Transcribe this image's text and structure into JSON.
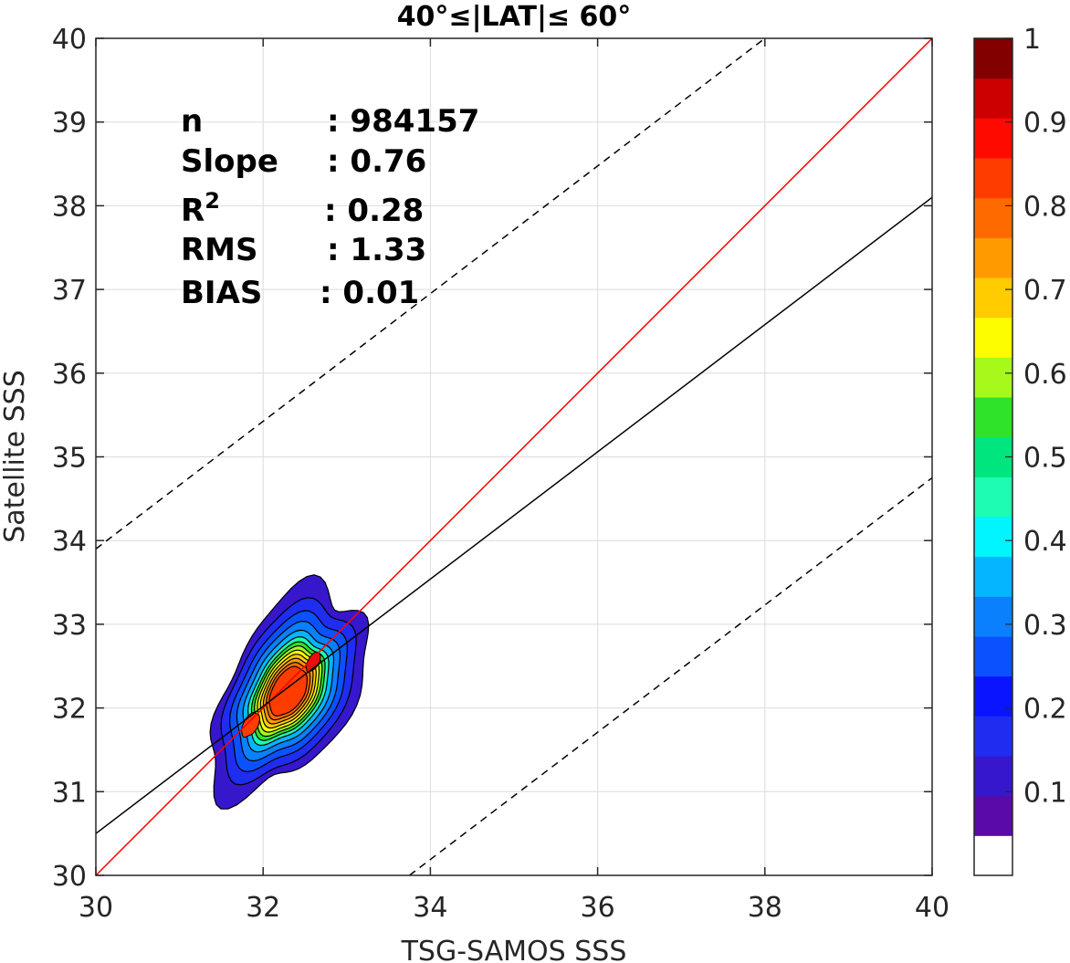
{
  "chart_data": {
    "type": "scatter",
    "subtype": "density-contour",
    "title": "40°≤|LAT|≤ 60°",
    "xlabel": "TSG-SAMOS SSS",
    "ylabel": "Satellite SSS",
    "xlim": [
      30,
      40
    ],
    "ylim": [
      30,
      40
    ],
    "xticks": [
      "30",
      "32",
      "34",
      "36",
      "38",
      "40"
    ],
    "yticks": [
      "30",
      "31",
      "32",
      "33",
      "34",
      "35",
      "36",
      "37",
      "38",
      "39",
      "40"
    ],
    "grid": true,
    "stats": [
      {
        "label": "n",
        "value": ": 984157"
      },
      {
        "label": "Slope",
        "value": ": 0.76"
      },
      {
        "label": "R",
        "sup": "2",
        "value": ": 0.28"
      },
      {
        "label": "RMS",
        "value": ": 1.33"
      },
      {
        "label": "BIAS",
        "value": ": 0.01"
      }
    ],
    "lines": [
      {
        "name": "1:1 line",
        "color": "#ff0000",
        "style": "solid",
        "x": [
          30,
          40
        ],
        "y": [
          30,
          40
        ]
      },
      {
        "name": "regression",
        "color": "#000000",
        "style": "solid",
        "x": [
          30,
          40
        ],
        "y": [
          30.5,
          38.1
        ]
      },
      {
        "name": "upper bound",
        "color": "#000000",
        "style": "dashed",
        "x": [
          30,
          38
        ],
        "y": [
          33.9,
          40
        ]
      },
      {
        "name": "lower bound",
        "color": "#000000",
        "style": "dashed",
        "x": [
          33.75,
          40
        ],
        "y": [
          30,
          34.75
        ]
      }
    ],
    "density_contours": {
      "center_x": 32.3,
      "center_y": 32.2,
      "levels": [
        {
          "level": 0.05,
          "color": "#3617cc",
          "hx": 1.02,
          "hy": 1.9
        },
        {
          "level": 0.15,
          "color": "#1f2df0",
          "hx": 0.9,
          "hy": 1.6
        },
        {
          "level": 0.2,
          "color": "#0b52ff",
          "hx": 0.79,
          "hy": 1.38
        },
        {
          "level": 0.25,
          "color": "#0b80ff",
          "hx": 0.7,
          "hy": 1.2
        },
        {
          "level": 0.3,
          "color": "#03b6ff",
          "hx": 0.62,
          "hy": 1.05
        },
        {
          "level": 0.4,
          "color": "#1dfcb2",
          "hx": 0.55,
          "hy": 0.94
        },
        {
          "level": 0.5,
          "color": "#2ee32a",
          "hx": 0.5,
          "hy": 0.86
        },
        {
          "level": 0.6,
          "color": "#a6f91a",
          "hx": 0.46,
          "hy": 0.79
        },
        {
          "level": 0.65,
          "color": "#fdfd00",
          "hx": 0.42,
          "hy": 0.72
        },
        {
          "level": 0.7,
          "color": "#ffcc00",
          "hx": 0.38,
          "hy": 0.65
        },
        {
          "level": 0.75,
          "color": "#ff9b00",
          "hx": 0.34,
          "hy": 0.58
        },
        {
          "level": 0.8,
          "color": "#ff6a00",
          "hx": 0.3,
          "hy": 0.51
        },
        {
          "level": 0.85,
          "color": "#ff3c00",
          "hx": 0.26,
          "hy": 0.44
        }
      ],
      "peaks": [
        {
          "x": 32.6,
          "y": 32.55,
          "hx": 0.09,
          "hy": 0.18,
          "color": "#e8100c"
        },
        {
          "x": 31.85,
          "y": 31.8,
          "hx": 0.12,
          "hy": 0.22,
          "color": "#ff3c00"
        }
      ]
    },
    "colorbar": {
      "ticks": [
        "0.1",
        "0.2",
        "0.3",
        "0.4",
        "0.5",
        "0.6",
        "0.7",
        "0.8",
        "0.9",
        "1"
      ],
      "tick_values": [
        0.1,
        0.2,
        0.3,
        0.4,
        0.5,
        0.6,
        0.7,
        0.8,
        0.9,
        1.0
      ],
      "colors": [
        "#ffffff",
        "#5a0aa8",
        "#3617cc",
        "#1f2df0",
        "#0b14ff",
        "#0b52ff",
        "#0b80ff",
        "#03b6ff",
        "#00f5ff",
        "#1dfcb2",
        "#00e57d",
        "#2ee32a",
        "#a6f91a",
        "#fdfd00",
        "#ffcc00",
        "#ff9b00",
        "#ff6a00",
        "#ff3c00",
        "#ff0a00",
        "#cc0000",
        "#820000"
      ]
    }
  }
}
